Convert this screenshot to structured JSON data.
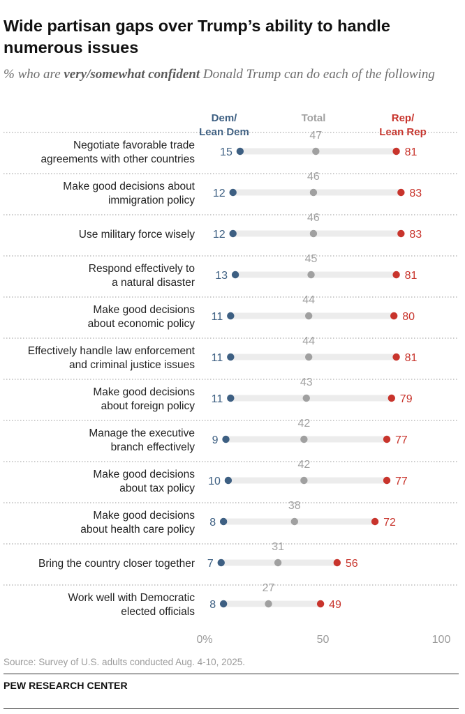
{
  "title": "Wide partisan gaps over Trump’s ability to handle numerous issues",
  "subtitle": {
    "pre": "% who are ",
    "emphasis": "very/somewhat confident",
    "post": " Donald Trump can do each of the following"
  },
  "source": "Source: Survey of U.S. adults conducted Aug. 4-10, 2025.",
  "logo": "PEW RESEARCH CENTER",
  "colors": {
    "dem": "#3d5f82",
    "total": "#a0a0a0",
    "rep": "#c8342c",
    "track": "#ececec",
    "divider": "#9a9a9a"
  },
  "chart_data": {
    "type": "dot-range",
    "title": "Wide partisan gaps over Trump’s ability to handle numerous issues",
    "xlim": [
      0,
      100
    ],
    "ticks": [
      "0%",
      "50",
      "100"
    ],
    "tick_values": [
      0,
      50,
      100
    ],
    "legend": [
      {
        "key": "dem",
        "lines": [
          "Dem/",
          "Lean Dem"
        ]
      },
      {
        "key": "total",
        "lines": [
          "Total"
        ]
      },
      {
        "key": "rep",
        "lines": [
          "Rep/",
          "Lean Rep"
        ]
      }
    ],
    "categories": [
      {
        "label": [
          "Negotiate favorable trade",
          "agreements with other countries"
        ],
        "dem": 15,
        "total": 47,
        "rep": 81
      },
      {
        "label": [
          "Make good decisions about",
          "immigration policy"
        ],
        "dem": 12,
        "total": 46,
        "rep": 83
      },
      {
        "label": [
          "Use military force wisely"
        ],
        "dem": 12,
        "total": 46,
        "rep": 83
      },
      {
        "label": [
          "Respond effectively to",
          "a natural disaster"
        ],
        "dem": 13,
        "total": 45,
        "rep": 81
      },
      {
        "label": [
          "Make good decisions",
          "about economic policy"
        ],
        "dem": 11,
        "total": 44,
        "rep": 80
      },
      {
        "label": [
          "Effectively handle law enforcement",
          "and criminal justice issues"
        ],
        "dem": 11,
        "total": 44,
        "rep": 81
      },
      {
        "label": [
          "Make good decisions",
          "about foreign policy"
        ],
        "dem": 11,
        "total": 43,
        "rep": 79
      },
      {
        "label": [
          "Manage the executive",
          "branch effectively"
        ],
        "dem": 9,
        "total": 42,
        "rep": 77
      },
      {
        "label": [
          "Make good decisions",
          "about tax policy"
        ],
        "dem": 10,
        "total": 42,
        "rep": 77
      },
      {
        "label": [
          "Make good decisions",
          "about health care policy"
        ],
        "dem": 8,
        "total": 38,
        "rep": 72
      },
      {
        "label": [
          "Bring the country closer together"
        ],
        "dem": 7,
        "total": 31,
        "rep": 56
      },
      {
        "label": [
          "Work well with Democratic",
          "elected officials"
        ],
        "dem": 8,
        "total": 27,
        "rep": 49
      }
    ]
  }
}
